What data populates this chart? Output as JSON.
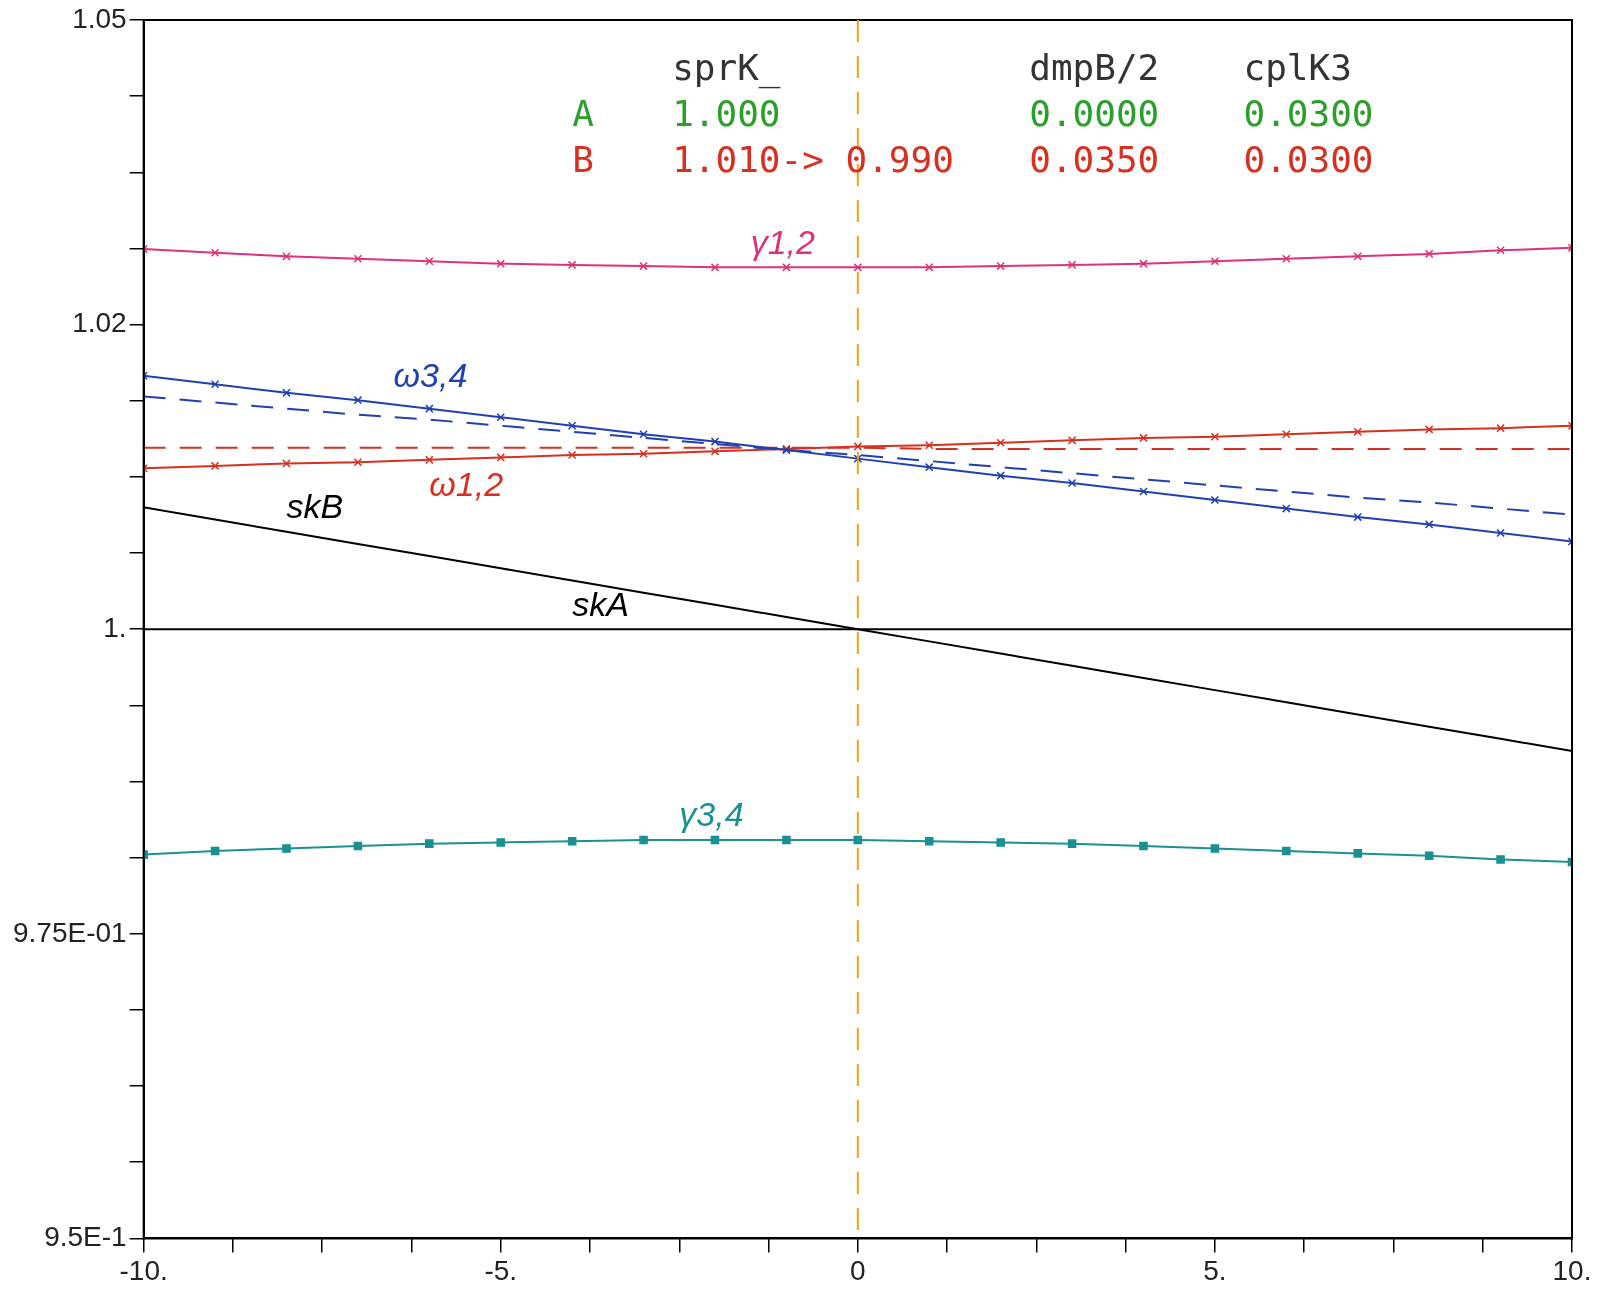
{
  "chart_data": {
    "type": "line",
    "annotations": [
      "sprK_",
      "dmpB/2",
      "cplK3",
      "A",
      "1.000",
      "0.0000",
      "0.0300",
      "B",
      "1.010-> 0.990",
      "0.0350",
      "0.0300"
    ],
    "x": [
      -10,
      -9,
      -8,
      -7,
      -6,
      -5,
      -4,
      -3,
      -2,
      -1,
      0,
      1,
      2,
      3,
      4,
      5,
      6,
      7,
      8,
      9,
      10
    ],
    "series": [
      {
        "name": "γ1,2",
        "color": "#e0307a",
        "marker": "cross",
        "values": [
          1.0312,
          1.0309,
          1.0306,
          1.0304,
          1.0302,
          1.03,
          1.0299,
          1.0298,
          1.0297,
          1.0297,
          1.0297,
          1.0297,
          1.0298,
          1.0299,
          1.03,
          1.0302,
          1.0304,
          1.0306,
          1.0308,
          1.0311,
          1.0313
        ]
      },
      {
        "name": "ω3,4",
        "color": "#2040b0",
        "marker": "cross",
        "values": [
          1.0208,
          1.0201,
          1.0194,
          1.0188,
          1.0181,
          1.0174,
          1.0167,
          1.016,
          1.0154,
          1.0147,
          1.014,
          1.0133,
          1.0126,
          1.012,
          1.0113,
          1.0106,
          1.0099,
          1.0092,
          1.0086,
          1.0079,
          1.0072
        ]
      },
      {
        "color": "#2040b0",
        "line_style": "dashed",
        "marker": "none",
        "values": [
          1.0191,
          1.0186,
          1.0181,
          1.0176,
          1.0172,
          1.0167,
          1.0162,
          1.0157,
          1.0152,
          1.0147,
          1.0143,
          1.0138,
          1.0133,
          1.0128,
          1.0123,
          1.0118,
          1.0113,
          1.0108,
          1.0104,
          1.0099,
          1.0094
        ]
      },
      {
        "name": "ω1,2",
        "color": "#d83020",
        "marker": "cross",
        "values": [
          1.0132,
          1.0134,
          1.0136,
          1.0137,
          1.0139,
          1.0141,
          1.0143,
          1.0144,
          1.0146,
          1.0148,
          1.015,
          1.0151,
          1.0153,
          1.0155,
          1.0157,
          1.0158,
          1.016,
          1.0162,
          1.0164,
          1.0165,
          1.0167
        ]
      },
      {
        "color": "#d83020",
        "line_style": "dashed",
        "marker": "none",
        "values": [
          1.0149,
          1.0149,
          1.0149,
          1.0149,
          1.0149,
          1.0149,
          1.0149,
          1.0149,
          1.0149,
          1.0149,
          1.0149,
          1.0148,
          1.0148,
          1.0148,
          1.0148,
          1.0148,
          1.0148,
          1.0148,
          1.0148,
          1.0148,
          1.0148
        ]
      },
      {
        "name": "skB",
        "color": "#000000",
        "marker": "none",
        "values": [
          1.01,
          1.009,
          1.008,
          1.007,
          1.006,
          1.005,
          1.004,
          1.003,
          1.002,
          1.001,
          1.0,
          0.999,
          0.998,
          0.997,
          0.996,
          0.995,
          0.994,
          0.993,
          0.992,
          0.991,
          0.99
        ]
      },
      {
        "name": "skA",
        "color": "#000000",
        "marker": "none",
        "values": [
          1.0,
          1.0,
          1.0,
          1.0,
          1.0,
          1.0,
          1.0,
          1.0,
          1.0,
          1.0,
          1.0,
          1.0,
          1.0,
          1.0,
          1.0,
          1.0,
          1.0,
          1.0,
          1.0,
          1.0,
          1.0
        ]
      },
      {
        "name": "γ3,4",
        "color": "#1a9090",
        "marker": "square",
        "values": [
          0.9815,
          0.9818,
          0.982,
          0.9822,
          0.9824,
          0.9825,
          0.9826,
          0.9827,
          0.9827,
          0.9827,
          0.9827,
          0.9826,
          0.9825,
          0.9824,
          0.9822,
          0.982,
          0.9818,
          0.9816,
          0.9814,
          0.9811,
          0.9809
        ]
      }
    ],
    "ref_lines": [
      {
        "axis": "x",
        "value": 0,
        "color": "#f0a020",
        "line_style": "dashed"
      }
    ],
    "xlim": [
      -10,
      10
    ],
    "xticks": [
      {
        "value": -10,
        "label": "-10."
      },
      {
        "value": -8.75,
        "label": null
      },
      {
        "value": -7.5,
        "label": null
      },
      {
        "value": -6.25,
        "label": null
      },
      {
        "value": -5,
        "label": "-5."
      },
      {
        "value": -3.75,
        "label": null
      },
      {
        "value": -2.5,
        "label": null
      },
      {
        "value": -1.25,
        "label": null
      },
      0,
      {
        "value": 1.25,
        "label": null
      },
      {
        "value": 2.5,
        "label": null
      },
      {
        "value": 3.75,
        "label": null
      },
      {
        "value": 5,
        "label": "5."
      },
      {
        "value": 6.25,
        "label": null
      },
      {
        "value": 7.5,
        "label": null
      },
      {
        "value": 8.75,
        "label": null
      },
      {
        "value": 10,
        "label": "10."
      }
    ],
    "ylim": [
      0.95,
      1.05
    ],
    "yticks": [
      {
        "value": 0.95,
        "label": "9.5E-1"
      },
      {
        "value": 0.95625,
        "label": null
      },
      {
        "value": 0.9625,
        "label": null
      },
      {
        "value": 0.96875,
        "label": null
      },
      {
        "value": 0.975,
        "label": "9.75E-01"
      },
      {
        "value": 0.98125,
        "label": null
      },
      {
        "value": 0.9875,
        "label": null
      },
      {
        "value": 0.99375,
        "label": null
      },
      {
        "value": 1.0,
        "label": "1."
      },
      {
        "value": 1.00625,
        "label": null
      },
      {
        "value": 1.0125,
        "label": null
      },
      {
        "value": 1.01875,
        "label": null
      },
      {
        "value": 1.025,
        "label": "1.02"
      },
      {
        "value": 1.03125,
        "label": null
      },
      {
        "value": 1.0375,
        "label": null
      },
      {
        "value": 1.04375,
        "label": null
      },
      {
        "value": 1.05,
        "label": "1.05"
      }
    ],
    "grid": false,
    "legend": false
  }
}
